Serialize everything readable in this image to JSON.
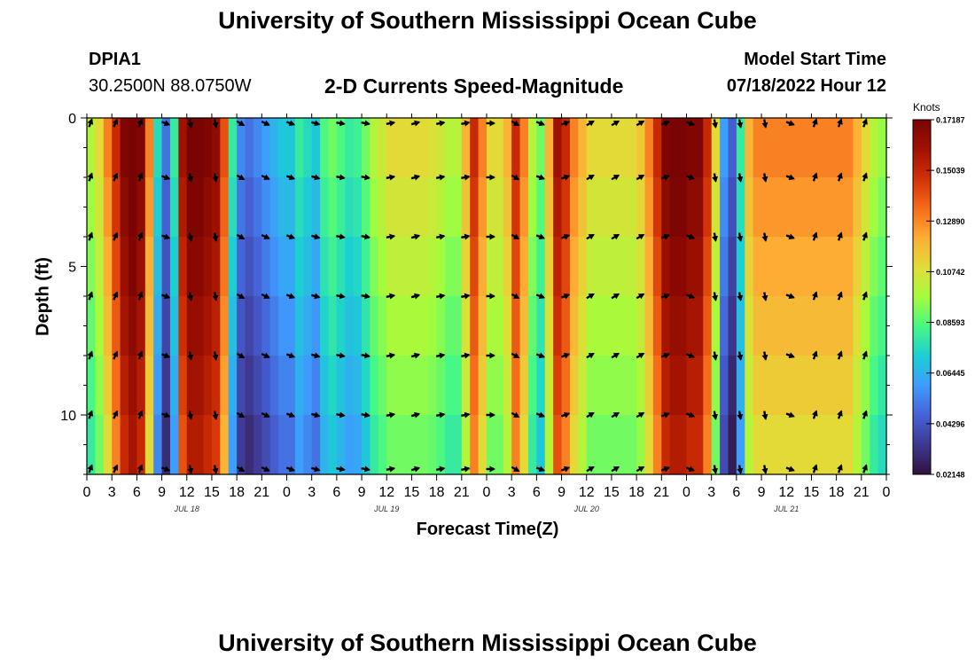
{
  "header": {
    "title": "University of Southern Mississippi Ocean Cube",
    "station": "DPIA1",
    "coords": "30.2500N  88.0750W",
    "subtitle": "2-D Currents Speed-Magnitude",
    "model_label": "Model Start Time",
    "model_time": "07/18/2022 Hour 12",
    "footer_title": "University of Southern Mississippi Ocean Cube"
  },
  "chart_data": {
    "type": "heatmap",
    "title": "2-D Currents Speed-Magnitude",
    "xlabel": "Forecast Time(Z)",
    "ylabel": "Depth (ft)",
    "x_range_hours": [
      0,
      96
    ],
    "x_tick_labels": [
      "0",
      "3",
      "6",
      "9",
      "12",
      "15",
      "18",
      "21",
      "0",
      "3",
      "6",
      "9",
      "12",
      "15",
      "18",
      "21",
      "0",
      "3",
      "6",
      "9",
      "12",
      "15",
      "18",
      "21",
      "0",
      "3",
      "6",
      "9",
      "12",
      "15",
      "18",
      "21",
      "0"
    ],
    "day_labels": [
      {
        "label": "JUL 18",
        "hour": 12
      },
      {
        "label": "JUL 19",
        "hour": 36
      },
      {
        "label": "JUL 20",
        "hour": 60
      },
      {
        "label": "JUL 21",
        "hour": 84
      }
    ],
    "y_range_ft": [
      0,
      12
    ],
    "y_tick_labels": [
      "0",
      "5",
      "10"
    ],
    "y_tick_values": [
      0,
      5,
      10
    ],
    "colorbar": {
      "unit": "Knots",
      "min": 0.02148,
      "max": 0.17187,
      "tick_labels": [
        "0.17187",
        "0.15039",
        "0.12890",
        "0.10742",
        "0.08593",
        "0.06445",
        "0.04296",
        "0.02148"
      ],
      "tick_values": [
        0.17187,
        0.15039,
        0.1289,
        0.10742,
        0.08593,
        0.06445,
        0.04296,
        0.02148
      ],
      "colors": [
        "#30123b",
        "#3e3891",
        "#4662d7",
        "#3e9bfe",
        "#1bcfd4",
        "#46f884",
        "#a4fc3c",
        "#e1dd37",
        "#fdad35",
        "#f66b19",
        "#d23105",
        "#a11201",
        "#7a0403"
      ]
    },
    "depth_bands_ft": [
      0,
      2,
      4,
      6,
      8,
      10,
      12
    ],
    "speed_profile_by_hour": [
      [
        0,
        0.09
      ],
      [
        1,
        0.1
      ],
      [
        2,
        0.12
      ],
      [
        3,
        0.14
      ],
      [
        4,
        0.16
      ],
      [
        5,
        0.168
      ],
      [
        6,
        0.16
      ],
      [
        7,
        0.12
      ],
      [
        8,
        0.065
      ],
      [
        9,
        0.04
      ],
      [
        10,
        0.07
      ],
      [
        11,
        0.15
      ],
      [
        12,
        0.165
      ],
      [
        13,
        0.165
      ],
      [
        14,
        0.16
      ],
      [
        15,
        0.155
      ],
      [
        16,
        0.13
      ],
      [
        17,
        0.07
      ],
      [
        18,
        0.045
      ],
      [
        19,
        0.04
      ],
      [
        20,
        0.045
      ],
      [
        21,
        0.05
      ],
      [
        22,
        0.055
      ],
      [
        23,
        0.06
      ],
      [
        24,
        0.06
      ],
      [
        25,
        0.07
      ],
      [
        26,
        0.065
      ],
      [
        27,
        0.06
      ],
      [
        28,
        0.075
      ],
      [
        29,
        0.08
      ],
      [
        30,
        0.075
      ],
      [
        31,
        0.07
      ],
      [
        32,
        0.072
      ],
      [
        33,
        0.08
      ],
      [
        34,
        0.09
      ],
      [
        35,
        0.095
      ],
      [
        36,
        0.1
      ],
      [
        37,
        0.1
      ],
      [
        38,
        0.1
      ],
      [
        39,
        0.1
      ],
      [
        40,
        0.1
      ],
      [
        41,
        0.098
      ],
      [
        42,
        0.095
      ],
      [
        43,
        0.09
      ],
      [
        44,
        0.09
      ],
      [
        45,
        0.11
      ],
      [
        46,
        0.14
      ],
      [
        47,
        0.12
      ],
      [
        48,
        0.1
      ],
      [
        49,
        0.1
      ],
      [
        50,
        0.11
      ],
      [
        51,
        0.14
      ],
      [
        52,
        0.12
      ],
      [
        53,
        0.09
      ],
      [
        54,
        0.08
      ],
      [
        55,
        0.11
      ],
      [
        56,
        0.15
      ],
      [
        57,
        0.14
      ],
      [
        58,
        0.12
      ],
      [
        59,
        0.11
      ],
      [
        60,
        0.1
      ],
      [
        61,
        0.1
      ],
      [
        62,
        0.1
      ],
      [
        63,
        0.1
      ],
      [
        64,
        0.1
      ],
      [
        65,
        0.1
      ],
      [
        66,
        0.105
      ],
      [
        67,
        0.12
      ],
      [
        68,
        0.14
      ],
      [
        69,
        0.16
      ],
      [
        70,
        0.165
      ],
      [
        71,
        0.165
      ],
      [
        72,
        0.16
      ],
      [
        73,
        0.16
      ],
      [
        74,
        0.14
      ],
      [
        75,
        0.1
      ],
      [
        76,
        0.05
      ],
      [
        77,
        0.035
      ],
      [
        78,
        0.07
      ],
      [
        79,
        0.11
      ],
      [
        80,
        0.12
      ],
      [
        81,
        0.12
      ],
      [
        82,
        0.12
      ],
      [
        83,
        0.12
      ],
      [
        84,
        0.12
      ],
      [
        85,
        0.12
      ],
      [
        86,
        0.12
      ],
      [
        87,
        0.12
      ],
      [
        88,
        0.12
      ],
      [
        89,
        0.12
      ],
      [
        90,
        0.12
      ],
      [
        91,
        0.12
      ],
      [
        92,
        0.11
      ],
      [
        93,
        0.1
      ],
      [
        94,
        0.09
      ],
      [
        95,
        0.085
      ],
      [
        96,
        0.09
      ]
    ],
    "surface_boost_knots": 0.04,
    "arrow_columns_hours": [
      0,
      3,
      6,
      9,
      12,
      15,
      18,
      21,
      24,
      27,
      30,
      33,
      36,
      39,
      42,
      45,
      48,
      51,
      54,
      57,
      60,
      63,
      66,
      69,
      72,
      75,
      78,
      81,
      84,
      87,
      90,
      93
    ],
    "arrow_rows_ft": [
      0,
      2,
      4,
      6,
      8,
      10,
      12
    ],
    "arrow_direction_deg_by_column": [
      20,
      25,
      20,
      110,
      170,
      170,
      120,
      115,
      110,
      105,
      100,
      100,
      80,
      75,
      80,
      80,
      90,
      120,
      110,
      70,
      60,
      60,
      60,
      70,
      110,
      170,
      170,
      170,
      110,
      20,
      20,
      20
    ]
  }
}
